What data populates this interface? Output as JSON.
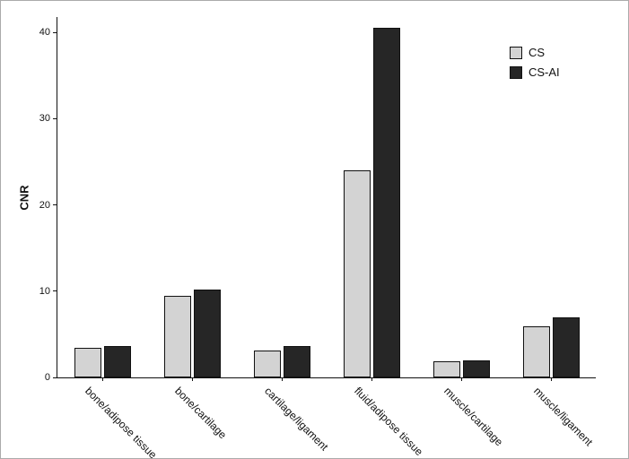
{
  "chart_data": {
    "type": "bar",
    "title": "",
    "xlabel": "",
    "ylabel": "CNR",
    "ylim": [
      0,
      42
    ],
    "yticks": [
      0,
      10,
      20,
      30,
      40
    ],
    "grid": false,
    "legend_position": "top-right",
    "categories": [
      "bone/adipose tissue",
      "bone/cartilage",
      "cartilage/ligament",
      "fluid/adipose tissue",
      "muscle/cartilage",
      "muscle/ligament"
    ],
    "series": [
      {
        "name": "CS",
        "color": "#d3d3d3",
        "values": [
          3.4,
          9.5,
          3.1,
          24.0,
          1.9,
          5.9
        ]
      },
      {
        "name": "CS-AI",
        "color": "#262626",
        "values": [
          3.6,
          10.2,
          3.6,
          40.5,
          2.0,
          7.0
        ]
      }
    ]
  }
}
